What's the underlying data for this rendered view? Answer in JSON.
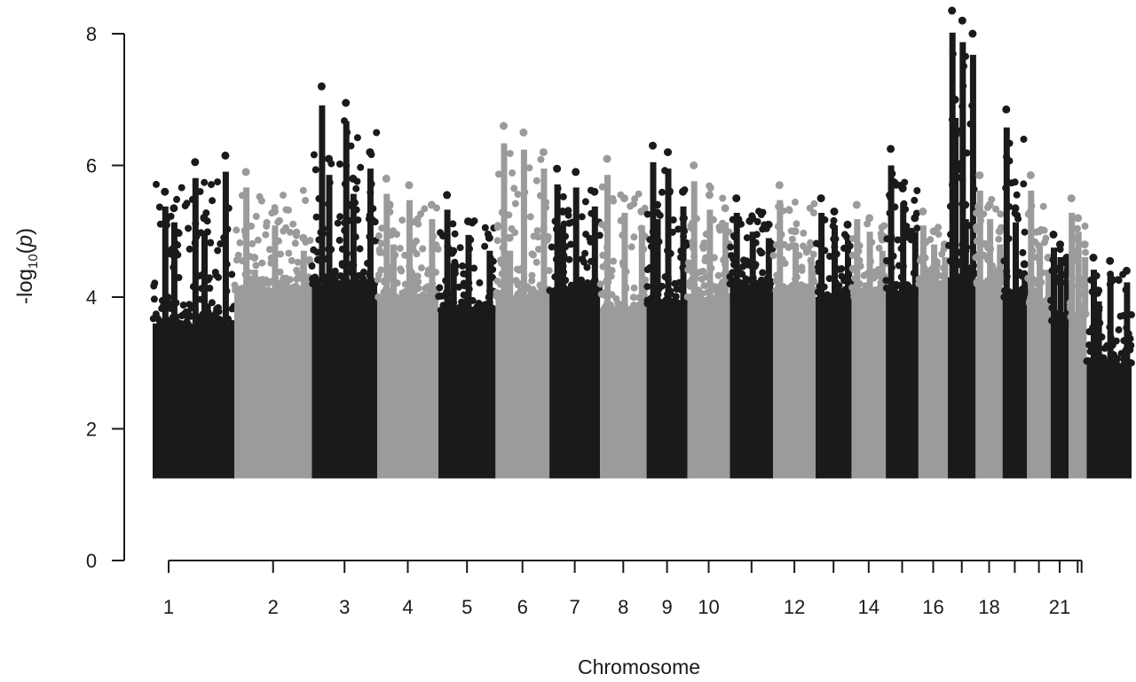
{
  "chart_data": {
    "type": "scatter",
    "title": "",
    "xlabel": "Chromosome",
    "ylabel": "-log10(p)",
    "ylabel_main": "-log",
    "ylabel_sub": "10",
    "ylabel_open": "(",
    "ylabel_var": "p",
    "ylabel_close": ")",
    "ylim": [
      0,
      8.4
    ],
    "yticks": [
      "0",
      "2",
      "4",
      "6",
      "8"
    ],
    "grid": false,
    "legend": "none",
    "colors": {
      "dark": "#1a1a1a",
      "light": "#9b9b9b"
    },
    "point_floor": 1.3,
    "chromosomes": [
      {
        "chr": "1",
        "label": "1",
        "color": "dark",
        "base": 3.6,
        "max": 6.15,
        "peaks": [
          5.6,
          6.05,
          6.15,
          5.35,
          5.2
        ]
      },
      {
        "chr": "2",
        "label": "2",
        "color": "light",
        "base": 4.1,
        "max": 5.9,
        "peaks": [
          5.9,
          5.3,
          4.9,
          4.6
        ]
      },
      {
        "chr": "3",
        "label": "3",
        "color": "dark",
        "base": 4.2,
        "max": 7.2,
        "peaks": [
          7.2,
          6.95,
          6.2,
          6.1,
          5.8
        ]
      },
      {
        "chr": "4",
        "label": "4",
        "color": "light",
        "base": 4.0,
        "max": 5.8,
        "peaks": [
          5.8,
          5.7,
          5.4,
          5.0
        ]
      },
      {
        "chr": "5",
        "label": "5",
        "color": "dark",
        "base": 3.8,
        "max": 5.55,
        "peaks": [
          5.55,
          5.15,
          4.9,
          4.7
        ]
      },
      {
        "chr": "6",
        "label": "6",
        "color": "light",
        "base": 4.0,
        "max": 6.6,
        "peaks": [
          6.6,
          6.5,
          6.2,
          4.9
        ]
      },
      {
        "chr": "7",
        "label": "7",
        "color": "dark",
        "base": 4.1,
        "max": 5.95,
        "peaks": [
          5.95,
          5.9,
          5.6,
          5.3
        ]
      },
      {
        "chr": "8",
        "label": "8",
        "color": "light",
        "base": 3.8,
        "max": 6.1,
        "peaks": [
          6.1,
          5.5,
          5.3
        ]
      },
      {
        "chr": "9",
        "label": "9",
        "color": "dark",
        "base": 3.9,
        "max": 6.3,
        "peaks": [
          6.3,
          6.2,
          5.6,
          5.4
        ]
      },
      {
        "chr": "10",
        "label": "10",
        "color": "light",
        "base": 4.0,
        "max": 6.0,
        "peaks": [
          6.0,
          5.55,
          5.35
        ]
      },
      {
        "chr": "11",
        "label": "",
        "color": "dark",
        "base": 4.2,
        "max": 5.5,
        "peaks": [
          5.5,
          5.2,
          5.1
        ]
      },
      {
        "chr": "12",
        "label": "12",
        "color": "light",
        "base": 4.1,
        "max": 5.7,
        "peaks": [
          5.7,
          5.0,
          4.8
        ]
      },
      {
        "chr": "13",
        "label": "",
        "color": "dark",
        "base": 4.0,
        "max": 5.5,
        "peaks": [
          5.5,
          5.3,
          5.1
        ]
      },
      {
        "chr": "14",
        "label": "14",
        "color": "light",
        "base": 4.0,
        "max": 5.4,
        "peaks": [
          5.4,
          5.2,
          4.9
        ]
      },
      {
        "chr": "15",
        "label": "",
        "color": "dark",
        "base": 4.1,
        "max": 6.25,
        "peaks": [
          6.25,
          5.65,
          5.2
        ]
      },
      {
        "chr": "16",
        "label": "16",
        "color": "light",
        "base": 4.2,
        "max": 5.3,
        "peaks": [
          5.3,
          5.0,
          4.8
        ]
      },
      {
        "chr": "17",
        "label": "",
        "color": "dark",
        "base": 4.3,
        "max": 8.35,
        "peaks": [
          8.35,
          8.2,
          8.0,
          7.0,
          5.4
        ]
      },
      {
        "chr": "18",
        "label": "18",
        "color": "light",
        "base": 4.2,
        "max": 5.85,
        "peaks": [
          5.85,
          5.4,
          5.0
        ]
      },
      {
        "chr": "19",
        "label": "",
        "color": "dark",
        "base": 4.0,
        "max": 6.85,
        "peaks": [
          6.85,
          5.35,
          4.5
        ]
      },
      {
        "chr": "20",
        "label": "",
        "color": "light",
        "base": 3.9,
        "max": 5.85,
        "peaks": [
          5.85,
          5.0,
          4.6
        ]
      },
      {
        "chr": "21",
        "label": "21",
        "color": "dark",
        "base": 3.6,
        "max": 4.95,
        "peaks": [
          4.95,
          4.8,
          4.6
        ]
      },
      {
        "chr": "22",
        "label": "",
        "color": "light",
        "base": 3.7,
        "max": 5.5,
        "peaks": [
          5.5,
          5.2,
          4.8
        ]
      },
      {
        "chr": "23",
        "label": "",
        "color": "dark",
        "base": 3.0,
        "max": 4.6,
        "peaks": [
          4.6,
          4.55,
          4.4,
          4.1
        ]
      }
    ]
  }
}
